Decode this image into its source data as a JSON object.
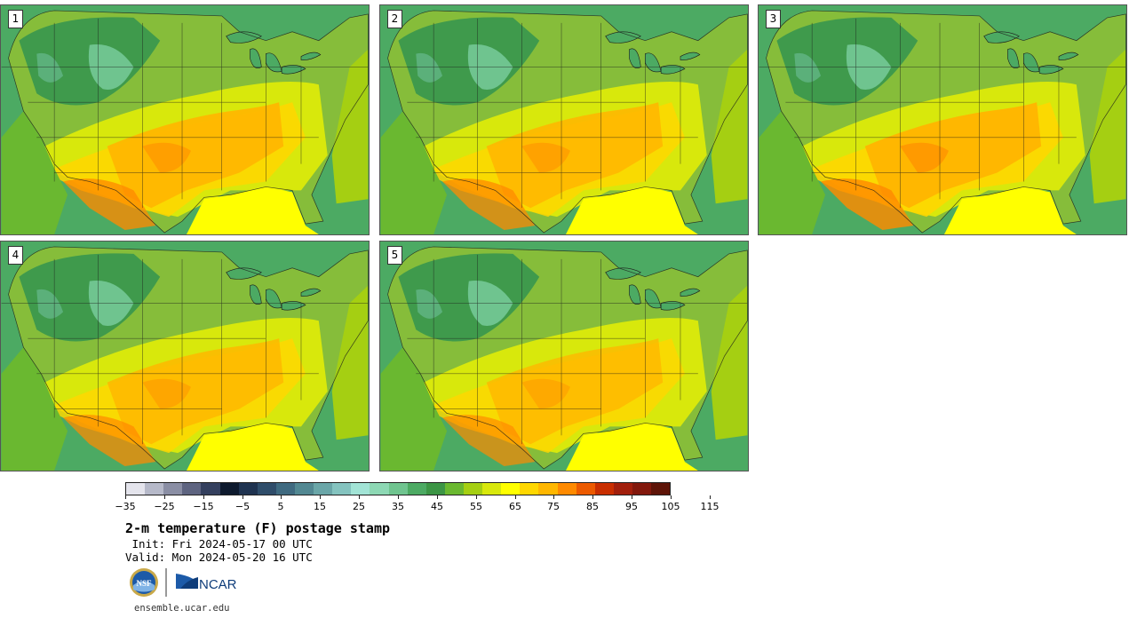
{
  "panels": [
    {
      "label": "1",
      "heat": 0.55
    },
    {
      "label": "2",
      "heat": 0.5
    },
    {
      "label": "3",
      "heat": 0.65
    },
    {
      "label": "4",
      "heat": 0.45
    },
    {
      "label": "5",
      "heat": 0.4
    }
  ],
  "colorbar": {
    "colors": [
      "#e4e4ec",
      "#b6b9c9",
      "#8a8ea4",
      "#5e6480",
      "#34405e",
      "#0e1a2e",
      "#1f3350",
      "#2f4d6a",
      "#3f6a80",
      "#528892",
      "#6aa6a8",
      "#84c3bf",
      "#a2e4d6",
      "#8dd8b4",
      "#6fc48f",
      "#4caa63",
      "#3c9545",
      "#6ab830",
      "#a5cf12",
      "#d8e80c",
      "#ffff00",
      "#ffd700",
      "#ffb700",
      "#ff8a00",
      "#ec5a00",
      "#c92e00",
      "#a21f0c",
      "#82180c",
      "#5e1408"
    ],
    "tick_labels": [
      "−35",
      "−25",
      "−15",
      "−5",
      "5",
      "15",
      "25",
      "35",
      "45",
      "55",
      "65",
      "75",
      "85",
      "95",
      "105",
      "115"
    ]
  },
  "title": "2-m temperature (F) postage stamp",
  "init_text": " Init: Fri 2024-05-17 00 UTC",
  "valid_text": "Valid: Mon 2024-05-20 16 UTC",
  "logos": {
    "nsf": "NSF",
    "ncar": "NCAR"
  },
  "footer_url": "ensemble.ucar.edu"
}
